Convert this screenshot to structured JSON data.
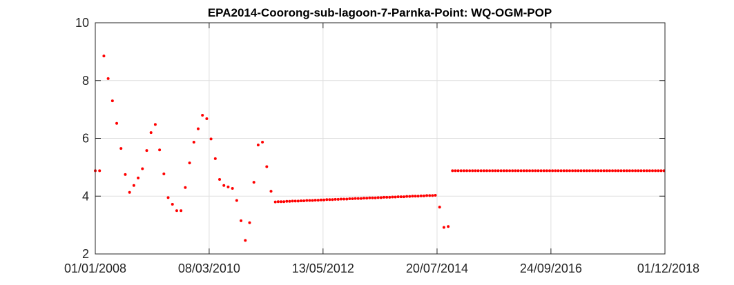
{
  "chart_data": {
    "type": "scatter",
    "title": "EPA2014-Coorong-sub-lagoon-7-Parnka-Point: WQ-OGM-POP",
    "xlabel": "",
    "ylabel": "",
    "x_axis_type": "date",
    "x_range": [
      "2008-01-01",
      "2018-12-01"
    ],
    "ylim": [
      2,
      10
    ],
    "y_ticks": [
      2,
      4,
      6,
      8,
      10
    ],
    "y_tick_labels": [
      "2",
      "4",
      "6",
      "8",
      "10"
    ],
    "x_ticks": [
      "2008-01-01",
      "2010-03-08",
      "2012-05-13",
      "2014-07-20",
      "2016-09-24",
      "2018-12-01"
    ],
    "x_tick_labels": [
      "01/01/2008",
      "08/03/2010",
      "13/05/2012",
      "20/07/2014",
      "24/09/2016",
      "01/12/2018"
    ],
    "grid": true,
    "marker_color": "#ff0000",
    "series": [
      {
        "points": [
          [
            "2008-01-01",
            4.88
          ],
          [
            "2008-01-31",
            4.88
          ],
          [
            "2008-03-01",
            8.85
          ],
          [
            "2008-03-31",
            8.07
          ],
          [
            "2008-04-30",
            7.3
          ],
          [
            "2008-05-30",
            6.52
          ],
          [
            "2008-06-29",
            5.65
          ],
          [
            "2008-07-29",
            4.75
          ],
          [
            "2008-08-28",
            4.13
          ],
          [
            "2008-09-27",
            4.37
          ],
          [
            "2008-10-27",
            4.63
          ],
          [
            "2008-11-26",
            4.95
          ],
          [
            "2008-12-26",
            5.58
          ],
          [
            "2009-01-25",
            6.2
          ],
          [
            "2009-02-24",
            6.48
          ],
          [
            "2009-03-26",
            5.6
          ],
          [
            "2009-04-25",
            4.77
          ],
          [
            "2009-05-25",
            3.95
          ],
          [
            "2009-06-24",
            3.72
          ],
          [
            "2009-07-24",
            3.5
          ],
          [
            "2009-08-23",
            3.5
          ],
          [
            "2009-09-22",
            4.3
          ],
          [
            "2009-10-22",
            5.15
          ],
          [
            "2009-11-21",
            5.87
          ],
          [
            "2009-12-21",
            6.33
          ],
          [
            "2010-01-20",
            6.8
          ],
          [
            "2010-02-19",
            6.68
          ],
          [
            "2010-03-21",
            5.98
          ],
          [
            "2010-04-20",
            5.3
          ],
          [
            "2010-05-20",
            4.58
          ],
          [
            "2010-06-19",
            4.37
          ],
          [
            "2010-07-19",
            4.32
          ],
          [
            "2010-08-18",
            4.27
          ],
          [
            "2010-09-17",
            3.85
          ],
          [
            "2010-10-17",
            3.15
          ],
          [
            "2010-11-16",
            2.47
          ],
          [
            "2010-12-16",
            3.08
          ],
          [
            "2011-01-15",
            4.48
          ],
          [
            "2011-02-14",
            5.77
          ],
          [
            "2011-03-16",
            5.87
          ],
          [
            "2011-04-15",
            5.02
          ],
          [
            "2011-05-15",
            4.17
          ],
          [
            "2011-06-14",
            3.8
          ],
          [
            "2011-07-04",
            3.81
          ],
          [
            "2011-07-24",
            3.81
          ],
          [
            "2011-08-13",
            3.81
          ],
          [
            "2011-09-02",
            3.82
          ],
          [
            "2011-09-22",
            3.82
          ],
          [
            "2011-10-12",
            3.83
          ],
          [
            "2011-11-01",
            3.83
          ],
          [
            "2011-11-21",
            3.83
          ],
          [
            "2011-12-11",
            3.84
          ],
          [
            "2011-12-31",
            3.84
          ],
          [
            "2012-01-20",
            3.85
          ],
          [
            "2012-02-09",
            3.85
          ],
          [
            "2012-02-29",
            3.85
          ],
          [
            "2012-03-20",
            3.86
          ],
          [
            "2012-04-09",
            3.86
          ],
          [
            "2012-04-29",
            3.87
          ],
          [
            "2012-05-19",
            3.87
          ],
          [
            "2012-06-08",
            3.88
          ],
          [
            "2012-06-28",
            3.88
          ],
          [
            "2012-07-18",
            3.88
          ],
          [
            "2012-08-07",
            3.89
          ],
          [
            "2012-08-27",
            3.89
          ],
          [
            "2012-09-16",
            3.9
          ],
          [
            "2012-10-06",
            3.9
          ],
          [
            "2012-10-26",
            3.9
          ],
          [
            "2012-11-15",
            3.91
          ],
          [
            "2012-12-05",
            3.91
          ],
          [
            "2012-12-25",
            3.92
          ],
          [
            "2013-01-14",
            3.92
          ],
          [
            "2013-02-03",
            3.92
          ],
          [
            "2013-02-23",
            3.93
          ],
          [
            "2013-03-15",
            3.93
          ],
          [
            "2013-04-04",
            3.94
          ],
          [
            "2013-04-24",
            3.94
          ],
          [
            "2013-05-14",
            3.94
          ],
          [
            "2013-06-03",
            3.95
          ],
          [
            "2013-06-23",
            3.95
          ],
          [
            "2013-07-13",
            3.96
          ],
          [
            "2013-08-02",
            3.96
          ],
          [
            "2013-08-22",
            3.96
          ],
          [
            "2013-09-11",
            3.97
          ],
          [
            "2013-10-01",
            3.97
          ],
          [
            "2013-10-21",
            3.98
          ],
          [
            "2013-11-10",
            3.98
          ],
          [
            "2013-11-30",
            3.98
          ],
          [
            "2013-12-20",
            3.99
          ],
          [
            "2014-01-09",
            3.99
          ],
          [
            "2014-01-29",
            4.0
          ],
          [
            "2014-02-18",
            4.0
          ],
          [
            "2014-03-10",
            4.0
          ],
          [
            "2014-03-30",
            4.01
          ],
          [
            "2014-04-19",
            4.01
          ],
          [
            "2014-05-09",
            4.02
          ],
          [
            "2014-05-29",
            4.02
          ],
          [
            "2014-06-18",
            4.02
          ],
          [
            "2014-07-08",
            4.03
          ],
          [
            "2014-08-07",
            3.62
          ],
          [
            "2014-09-06",
            2.92
          ],
          [
            "2014-10-06",
            2.95
          ],
          [
            "2014-11-05",
            4.88
          ],
          [
            "2014-11-25",
            4.88
          ],
          [
            "2014-12-15",
            4.88
          ],
          [
            "2015-01-04",
            4.88
          ],
          [
            "2015-01-24",
            4.88
          ],
          [
            "2015-02-13",
            4.88
          ],
          [
            "2015-03-05",
            4.88
          ],
          [
            "2015-03-25",
            4.88
          ],
          [
            "2015-04-14",
            4.88
          ],
          [
            "2015-05-04",
            4.88
          ],
          [
            "2015-05-24",
            4.88
          ],
          [
            "2015-06-13",
            4.88
          ],
          [
            "2015-07-03",
            4.88
          ],
          [
            "2015-07-23",
            4.88
          ],
          [
            "2015-08-12",
            4.88
          ],
          [
            "2015-09-01",
            4.88
          ],
          [
            "2015-09-21",
            4.88
          ],
          [
            "2015-10-11",
            4.88
          ],
          [
            "2015-10-31",
            4.88
          ],
          [
            "2015-11-20",
            4.88
          ],
          [
            "2015-12-10",
            4.88
          ],
          [
            "2015-12-30",
            4.88
          ],
          [
            "2016-01-19",
            4.88
          ],
          [
            "2016-02-08",
            4.88
          ],
          [
            "2016-02-28",
            4.88
          ],
          [
            "2016-03-19",
            4.88
          ],
          [
            "2016-04-08",
            4.88
          ],
          [
            "2016-04-28",
            4.88
          ],
          [
            "2016-05-18",
            4.88
          ],
          [
            "2016-06-07",
            4.88
          ],
          [
            "2016-06-27",
            4.88
          ],
          [
            "2016-07-17",
            4.88
          ],
          [
            "2016-08-06",
            4.88
          ],
          [
            "2016-08-26",
            4.88
          ],
          [
            "2016-09-15",
            4.88
          ],
          [
            "2016-10-05",
            4.88
          ],
          [
            "2016-10-25",
            4.88
          ],
          [
            "2016-11-14",
            4.88
          ],
          [
            "2016-12-04",
            4.88
          ],
          [
            "2016-12-24",
            4.88
          ],
          [
            "2017-01-13",
            4.88
          ],
          [
            "2017-02-02",
            4.88
          ],
          [
            "2017-02-22",
            4.88
          ],
          [
            "2017-03-14",
            4.88
          ],
          [
            "2017-04-03",
            4.88
          ],
          [
            "2017-04-23",
            4.88
          ],
          [
            "2017-05-13",
            4.88
          ],
          [
            "2017-06-02",
            4.88
          ],
          [
            "2017-06-22",
            4.88
          ],
          [
            "2017-07-12",
            4.88
          ],
          [
            "2017-08-01",
            4.88
          ],
          [
            "2017-08-21",
            4.88
          ],
          [
            "2017-09-10",
            4.88
          ],
          [
            "2017-09-30",
            4.88
          ],
          [
            "2017-10-20",
            4.88
          ],
          [
            "2017-11-09",
            4.88
          ],
          [
            "2017-11-29",
            4.88
          ],
          [
            "2017-12-19",
            4.88
          ],
          [
            "2018-01-08",
            4.88
          ],
          [
            "2018-01-28",
            4.88
          ],
          [
            "2018-02-17",
            4.88
          ],
          [
            "2018-03-09",
            4.88
          ],
          [
            "2018-03-29",
            4.88
          ],
          [
            "2018-04-18",
            4.88
          ],
          [
            "2018-05-08",
            4.88
          ],
          [
            "2018-05-28",
            4.88
          ],
          [
            "2018-06-17",
            4.88
          ],
          [
            "2018-07-07",
            4.88
          ],
          [
            "2018-07-27",
            4.88
          ],
          [
            "2018-08-16",
            4.88
          ],
          [
            "2018-09-05",
            4.88
          ],
          [
            "2018-09-25",
            4.88
          ],
          [
            "2018-10-15",
            4.88
          ],
          [
            "2018-11-04",
            4.88
          ],
          [
            "2018-11-24",
            4.88
          ]
        ]
      }
    ]
  }
}
